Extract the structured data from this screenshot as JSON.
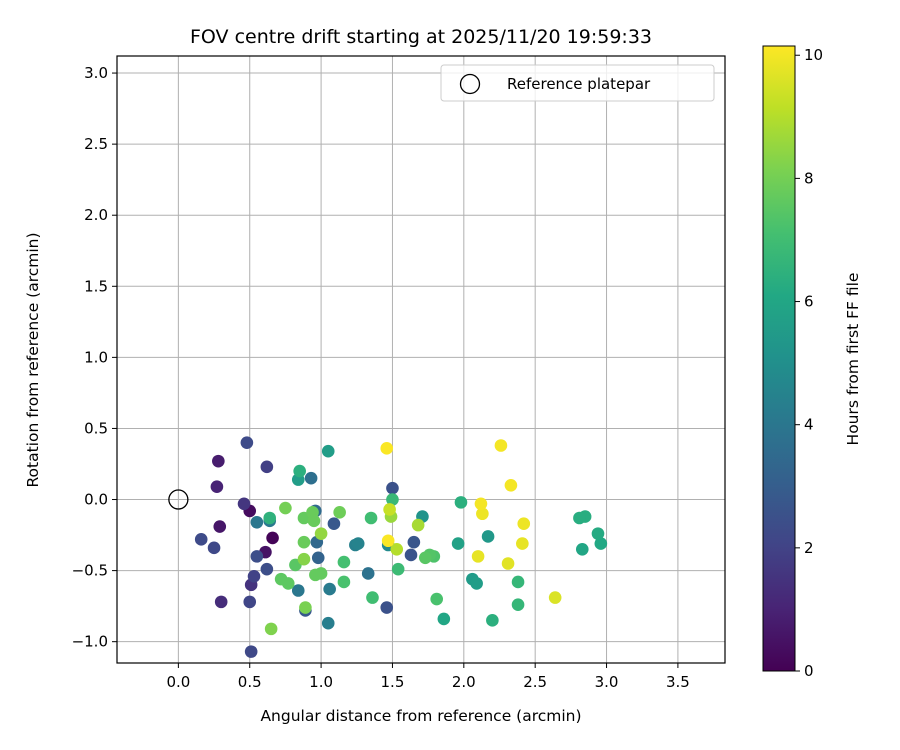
{
  "chart_data": {
    "type": "scatter",
    "title": "FOV centre drift starting at 2025/11/20 19:59:33",
    "xlabel": "Angular distance from reference (arcmin)",
    "ylabel": "Rotation from reference (arcmin)",
    "xlim": [
      -0.43,
      3.83
    ],
    "ylim": [
      -1.15,
      3.12
    ],
    "xticks": [
      "0.0",
      "0.5",
      "1.0",
      "1.5",
      "2.0",
      "2.5",
      "3.0",
      "3.5"
    ],
    "xtick_values": [
      0,
      0.5,
      1,
      1.5,
      2,
      2.5,
      3,
      3.5
    ],
    "yticks": [
      "−1.0",
      "−0.5",
      "0.0",
      "0.5",
      "1.0",
      "1.5",
      "2.0",
      "2.5",
      "3.0"
    ],
    "ytick_values": [
      -1,
      -0.5,
      0,
      0.5,
      1,
      1.5,
      2,
      2.5,
      3
    ],
    "grid": true,
    "legend": {
      "position": "top-right",
      "entries": [
        "Reference platepar"
      ]
    },
    "reference_point": {
      "x": 0.0,
      "y": 0.0,
      "label": "Reference platepar"
    },
    "colorbar": {
      "label": "Hours from first FF file",
      "min": 0,
      "max": 10.15,
      "ticks": [
        "0",
        "2",
        "4",
        "6",
        "8",
        "10"
      ],
      "tick_values": [
        0,
        2,
        4,
        6,
        8,
        10
      ],
      "colormap": "viridis"
    },
    "points": [
      {
        "x": 0.66,
        "y": -0.27,
        "c": 0.1
      },
      {
        "x": 0.5,
        "y": -0.08,
        "c": 0.3
      },
      {
        "x": 0.61,
        "y": -0.37,
        "c": 0.5
      },
      {
        "x": 0.29,
        "y": -0.19,
        "c": 0.6
      },
      {
        "x": 0.28,
        "y": 0.27,
        "c": 0.8
      },
      {
        "x": 0.27,
        "y": 0.09,
        "c": 1.0
      },
      {
        "x": 0.3,
        "y": -0.72,
        "c": 1.3
      },
      {
        "x": 0.51,
        "y": -0.6,
        "c": 1.5
      },
      {
        "x": 0.46,
        "y": -0.03,
        "c": 1.6
      },
      {
        "x": 0.62,
        "y": 0.23,
        "c": 1.9
      },
      {
        "x": 0.53,
        "y": -0.54,
        "c": 2.0
      },
      {
        "x": 0.5,
        "y": -0.72,
        "c": 2.1
      },
      {
        "x": 0.51,
        "y": -1.07,
        "c": 2.2
      },
      {
        "x": 0.25,
        "y": -0.34,
        "c": 2.2
      },
      {
        "x": 0.16,
        "y": -0.28,
        "c": 2.3
      },
      {
        "x": 0.48,
        "y": 0.4,
        "c": 2.3
      },
      {
        "x": 0.55,
        "y": -0.4,
        "c": 2.4
      },
      {
        "x": 0.62,
        "y": -0.49,
        "c": 2.4
      },
      {
        "x": 1.46,
        "y": -0.76,
        "c": 2.5
      },
      {
        "x": 1.5,
        "y": 0.08,
        "c": 2.5
      },
      {
        "x": 1.63,
        "y": -0.39,
        "c": 2.6
      },
      {
        "x": 1.65,
        "y": -0.3,
        "c": 2.7
      },
      {
        "x": 1.09,
        "y": -0.17,
        "c": 2.8
      },
      {
        "x": 0.89,
        "y": -0.78,
        "c": 2.8
      },
      {
        "x": 0.98,
        "y": -0.41,
        "c": 3.2
      },
      {
        "x": 0.97,
        "y": -0.3,
        "c": 3.4
      },
      {
        "x": 0.96,
        "y": -0.08,
        "c": 3.5
      },
      {
        "x": 0.93,
        "y": 0.15,
        "c": 3.7
      },
      {
        "x": 1.33,
        "y": -0.52,
        "c": 3.8
      },
      {
        "x": 0.84,
        "y": -0.64,
        "c": 4.0
      },
      {
        "x": 0.55,
        "y": -0.16,
        "c": 4.0
      },
      {
        "x": 0.64,
        "y": -0.15,
        "c": 4.1
      },
      {
        "x": 1.06,
        "y": -0.63,
        "c": 4.2
      },
      {
        "x": 1.05,
        "y": -0.87,
        "c": 4.3
      },
      {
        "x": 1.24,
        "y": -0.32,
        "c": 4.4
      },
      {
        "x": 1.26,
        "y": -0.31,
        "c": 4.5
      },
      {
        "x": 1.47,
        "y": -0.32,
        "c": 4.8
      },
      {
        "x": 1.71,
        "y": -0.12,
        "c": 5.2
      },
      {
        "x": 2.17,
        "y": -0.26,
        "c": 5.4
      },
      {
        "x": 2.06,
        "y": -0.56,
        "c": 5.5
      },
      {
        "x": 2.09,
        "y": -0.59,
        "c": 5.6
      },
      {
        "x": 1.05,
        "y": 0.34,
        "c": 5.6
      },
      {
        "x": 0.84,
        "y": 0.14,
        "c": 5.6
      },
      {
        "x": 1.96,
        "y": -0.31,
        "c": 5.8
      },
      {
        "x": 1.86,
        "y": -0.84,
        "c": 6.0
      },
      {
        "x": 2.83,
        "y": -0.35,
        "c": 6.0
      },
      {
        "x": 2.96,
        "y": -0.31,
        "c": 6.1
      },
      {
        "x": 2.94,
        "y": -0.24,
        "c": 6.2
      },
      {
        "x": 2.85,
        "y": -0.12,
        "c": 6.3
      },
      {
        "x": 2.81,
        "y": -0.13,
        "c": 6.3
      },
      {
        "x": 2.2,
        "y": -0.85,
        "c": 6.4
      },
      {
        "x": 1.98,
        "y": -0.02,
        "c": 6.4
      },
      {
        "x": 0.85,
        "y": 0.2,
        "c": 6.4
      },
      {
        "x": 0.64,
        "y": -0.13,
        "c": 6.5
      },
      {
        "x": 2.38,
        "y": -0.58,
        "c": 6.7
      },
      {
        "x": 2.38,
        "y": -0.74,
        "c": 6.7
      },
      {
        "x": 1.5,
        "y": 0.0,
        "c": 6.8
      },
      {
        "x": 1.54,
        "y": -0.49,
        "c": 6.9
      },
      {
        "x": 1.35,
        "y": -0.13,
        "c": 7.0
      },
      {
        "x": 1.36,
        "y": -0.69,
        "c": 7.0
      },
      {
        "x": 1.16,
        "y": -0.44,
        "c": 7.1
      },
      {
        "x": 1.16,
        "y": -0.58,
        "c": 7.2
      },
      {
        "x": 1.81,
        "y": -0.7,
        "c": 7.2
      },
      {
        "x": 1.79,
        "y": -0.4,
        "c": 7.3
      },
      {
        "x": 1.76,
        "y": -0.39,
        "c": 7.4
      },
      {
        "x": 1.73,
        "y": -0.41,
        "c": 7.5
      },
      {
        "x": 0.82,
        "y": -0.46,
        "c": 7.5
      },
      {
        "x": 0.77,
        "y": -0.59,
        "c": 7.6
      },
      {
        "x": 0.72,
        "y": -0.56,
        "c": 7.6
      },
      {
        "x": 0.96,
        "y": -0.53,
        "c": 7.7
      },
      {
        "x": 1.0,
        "y": -0.52,
        "c": 7.7
      },
      {
        "x": 0.88,
        "y": -0.13,
        "c": 7.7
      },
      {
        "x": 0.88,
        "y": -0.3,
        "c": 7.8
      },
      {
        "x": 0.94,
        "y": -0.09,
        "c": 7.8
      },
      {
        "x": 0.95,
        "y": -0.15,
        "c": 7.8
      },
      {
        "x": 1.13,
        "y": -0.09,
        "c": 7.9
      },
      {
        "x": 0.75,
        "y": -0.06,
        "c": 8.0
      },
      {
        "x": 0.89,
        "y": -0.76,
        "c": 8.1
      },
      {
        "x": 0.65,
        "y": -0.91,
        "c": 8.2
      },
      {
        "x": 0.88,
        "y": -0.42,
        "c": 8.3
      },
      {
        "x": 1.0,
        "y": -0.24,
        "c": 8.5
      },
      {
        "x": 1.49,
        "y": -0.12,
        "c": 8.6
      },
      {
        "x": 1.68,
        "y": -0.18,
        "c": 8.8
      },
      {
        "x": 1.53,
        "y": -0.35,
        "c": 9.0
      },
      {
        "x": 1.48,
        "y": -0.07,
        "c": 9.3
      },
      {
        "x": 2.64,
        "y": -0.69,
        "c": 9.6
      },
      {
        "x": 2.31,
        "y": -0.45,
        "c": 9.7
      },
      {
        "x": 2.1,
        "y": -0.4,
        "c": 9.8
      },
      {
        "x": 2.41,
        "y": -0.31,
        "c": 9.8
      },
      {
        "x": 2.42,
        "y": -0.17,
        "c": 9.9
      },
      {
        "x": 2.13,
        "y": -0.1,
        "c": 9.9
      },
      {
        "x": 2.12,
        "y": -0.03,
        "c": 10.0
      },
      {
        "x": 2.33,
        "y": 0.1,
        "c": 10.0
      },
      {
        "x": 2.26,
        "y": 0.38,
        "c": 10.0
      },
      {
        "x": 1.46,
        "y": 0.36,
        "c": 10.1
      },
      {
        "x": 1.47,
        "y": -0.29,
        "c": 10.1
      }
    ]
  }
}
